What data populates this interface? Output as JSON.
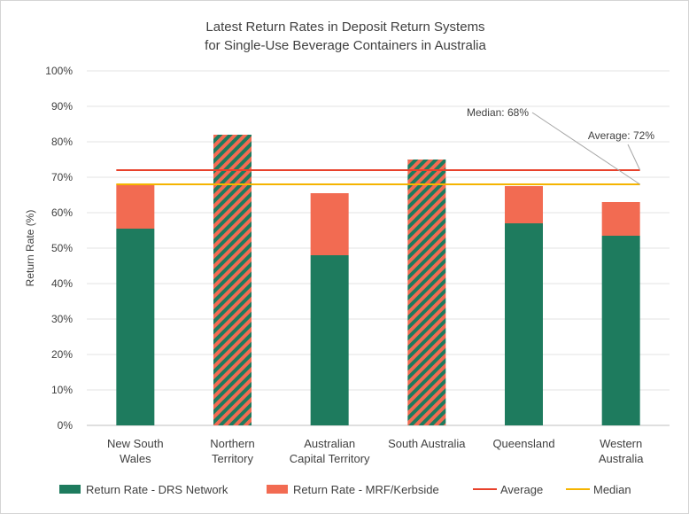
{
  "chart_data": {
    "type": "bar",
    "title_lines": [
      "Latest Return Rates in Deposit Return Systems",
      "for Single-Use Beverage Containers in Australia"
    ],
    "ylabel": "Return Rate (%)",
    "ylim": [
      0,
      100
    ],
    "y_ticks": [
      "0%",
      "10%",
      "20%",
      "30%",
      "40%",
      "50%",
      "60%",
      "70%",
      "80%",
      "90%",
      "100%"
    ],
    "categories": [
      [
        "New South",
        "Wales"
      ],
      [
        "Northern",
        "Territory"
      ],
      [
        "Australian",
        "Capital Territory"
      ],
      [
        "South Australia"
      ],
      [
        "Queensland"
      ],
      [
        "Western",
        "Australia"
      ]
    ],
    "series": [
      {
        "name": "Return Rate - DRS Network",
        "values": [
          55.5,
          null,
          48,
          null,
          57,
          53.5
        ],
        "color": "#1e7b5e"
      },
      {
        "name": "Return Rate - MRF/Kerbside",
        "values": [
          12.5,
          null,
          17.5,
          null,
          10.5,
          9.5
        ],
        "color": "#f26b52"
      }
    ],
    "hatched_totals": {
      "values": [
        null,
        82,
        null,
        75,
        null,
        null
      ],
      "colors": [
        "#f26b52",
        "#1e7b5e"
      ]
    },
    "average": {
      "name": "Average",
      "value": 72,
      "label": "Average: 72%",
      "color": "#e8412b"
    },
    "median": {
      "name": "Median",
      "value": 68,
      "label": "Median: 68%",
      "color": "#f5b400"
    },
    "grid": true,
    "legend_position": "bottom"
  }
}
